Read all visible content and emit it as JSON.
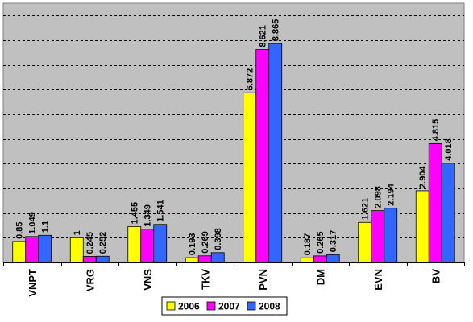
{
  "chart_data": {
    "type": "bar",
    "title": "",
    "xlabel": "",
    "ylabel": "",
    "categories": [
      "VNPT",
      "VRG",
      "VNS",
      "TKV",
      "PVN",
      "DM",
      "EVN",
      "BV"
    ],
    "series": [
      {
        "name": "2006",
        "color": "#ffff00",
        "values": [
          0.85,
          1,
          1.455,
          0.193,
          6.872,
          0.187,
          1.621,
          2.904
        ],
        "labels": [
          "0.85",
          "1",
          "1.455",
          "0.193",
          "6.872",
          "0.187",
          "1.621",
          "2.904"
        ]
      },
      {
        "name": "2007",
        "color": "#ff00ff",
        "values": [
          1.049,
          0.245,
          1.349,
          0.269,
          8.621,
          0.265,
          2.098,
          4.815
        ],
        "labels": [
          "1.049",
          "0.245",
          "1.349",
          "0.269",
          "8.621",
          "0.265",
          "2.098",
          "4.815"
        ]
      },
      {
        "name": "2008",
        "color": "#3366ff",
        "values": [
          1.1,
          0.252,
          1.541,
          0.398,
          8.865,
          0.317,
          2.194,
          4.018
        ],
        "labels": [
          "1.1",
          "0.252",
          "1.541",
          "0.398",
          "8.865",
          "0.317",
          "2.194",
          "4.018"
        ]
      }
    ],
    "ylim": [
      0,
      10.5
    ],
    "y_gridline_step": 1,
    "grid": true,
    "grid_style": "dashed",
    "plot_background": "#c0c0c0",
    "legend_position": "bottom-center"
  }
}
